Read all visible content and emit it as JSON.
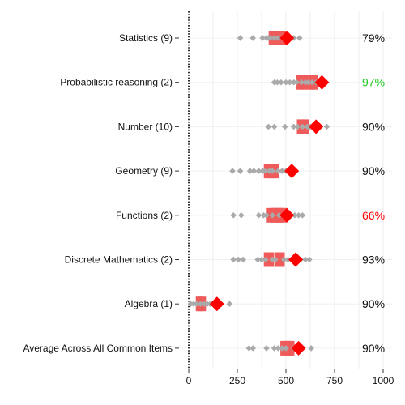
{
  "chart_data": {
    "type": "scatter",
    "title": "",
    "xlabel": "",
    "ylabel": "",
    "xlim": [
      0,
      1000
    ],
    "x_ticks": [
      0,
      250,
      500,
      750,
      1000
    ],
    "grid": "vertical",
    "colors": {
      "others": "#aaaaaa",
      "highlight_band": "#ef5b5b",
      "highlight_point": "#ff0000",
      "pct_good": "#22cc22",
      "pct_bad": "#ff0000",
      "pct_normal": "#111111"
    },
    "categories": [
      {
        "label": "Statistics (9)",
        "percent": "79%",
        "percent_color": "normal",
        "highlight": 505,
        "band_values": [
          430,
          450,
          470,
          490
        ],
        "others": [
          265,
          330,
          380,
          400,
          410,
          420,
          440,
          460,
          480,
          500,
          520,
          540,
          570
        ]
      },
      {
        "label": "Probabilistic reasoning (2)",
        "percent": "97%",
        "percent_color": "good",
        "highlight": 685,
        "band_values": [
          570,
          590,
          625,
          645
        ],
        "others": [
          440,
          455,
          475,
          500,
          520,
          540,
          555,
          580,
          600,
          615,
          635,
          655,
          670
        ]
      },
      {
        "label": "Number (10)",
        "percent": "90%",
        "percent_color": "normal",
        "highlight": 655,
        "band_values": [
          575,
          600
        ],
        "others": [
          410,
          440,
          495,
          540,
          560,
          585,
          610,
          625,
          640,
          710
        ]
      },
      {
        "label": "Geometry (9)",
        "percent": "90%",
        "percent_color": "normal",
        "highlight": 530,
        "band_values": [
          405,
          420,
          435,
          445
        ],
        "others": [
          225,
          265,
          315,
          335,
          360,
          380,
          395,
          415,
          430,
          460,
          480,
          500
        ]
      },
      {
        "label": "Functions (2)",
        "percent": "66%",
        "percent_color": "bad",
        "highlight": 505,
        "band_values": [
          420,
          440,
          455,
          470,
          485
        ],
        "others": [
          230,
          270,
          360,
          385,
          400,
          430,
          465,
          495,
          525,
          545,
          565,
          585
        ]
      },
      {
        "label": "Discrete Mathematics (2)",
        "percent": "93%",
        "percent_color": "normal",
        "highlight": 550,
        "band_values": [
          405,
          420,
          460,
          475
        ],
        "others": [
          230,
          255,
          280,
          355,
          375,
          395,
          430,
          445,
          490,
          510,
          530,
          575,
          600,
          620
        ]
      },
      {
        "label": "Algebra (1)",
        "percent": "90%",
        "percent_color": "normal",
        "highlight": 145,
        "band_values": [
          55,
          70
        ],
        "others": [
          10,
          25,
          40,
          60,
          80,
          95,
          110,
          125,
          210
        ]
      },
      {
        "label": "Average Across All Common Items",
        "percent": "90%",
        "percent_color": "normal",
        "highlight": 565,
        "band_values": [
          490,
          505,
          515,
          525
        ],
        "others": [
          310,
          330,
          400,
          440,
          460,
          480,
          500,
          540,
          560,
          630
        ]
      }
    ]
  }
}
